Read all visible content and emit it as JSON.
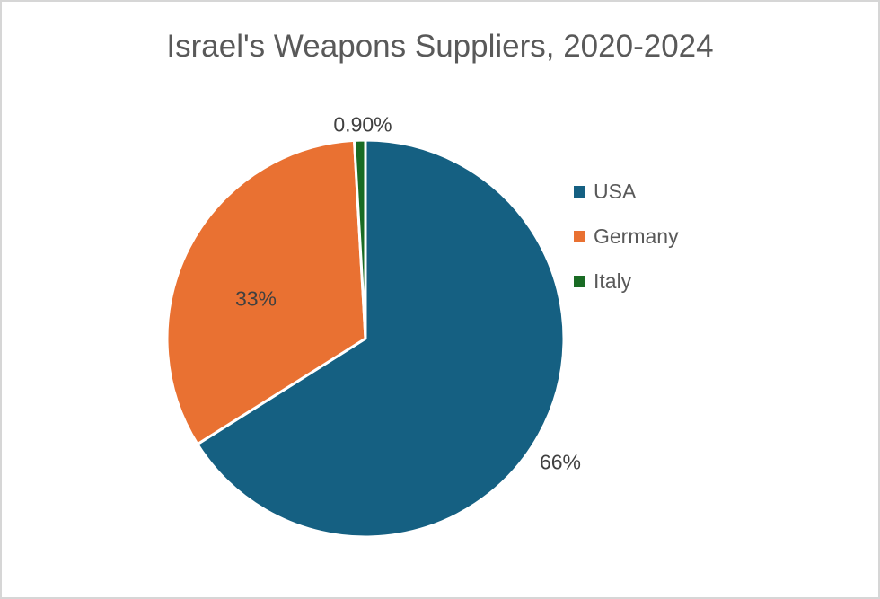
{
  "chart_data": {
    "type": "pie",
    "title": "Israel's Weapons Suppliers, 2020-2024",
    "slices": [
      {
        "name": "USA",
        "value": 66,
        "label": "66%",
        "color": "#156082"
      },
      {
        "name": "Germany",
        "value": 33,
        "label": "33%",
        "color": "#E97132"
      },
      {
        "name": "Italy",
        "value": 0.9,
        "label": "0.90%",
        "color": "#196B24"
      }
    ],
    "direction": "clockwise",
    "start_angle_deg": 0,
    "legend_position": "right",
    "grid": "off",
    "styles": {
      "title_color": "#595959",
      "data_label_color": "#404040",
      "legend_text_color": "#595959",
      "slice_border_color": "#ffffff",
      "canvas_border_color": "#d6d6d6",
      "background": "#ffffff"
    }
  }
}
